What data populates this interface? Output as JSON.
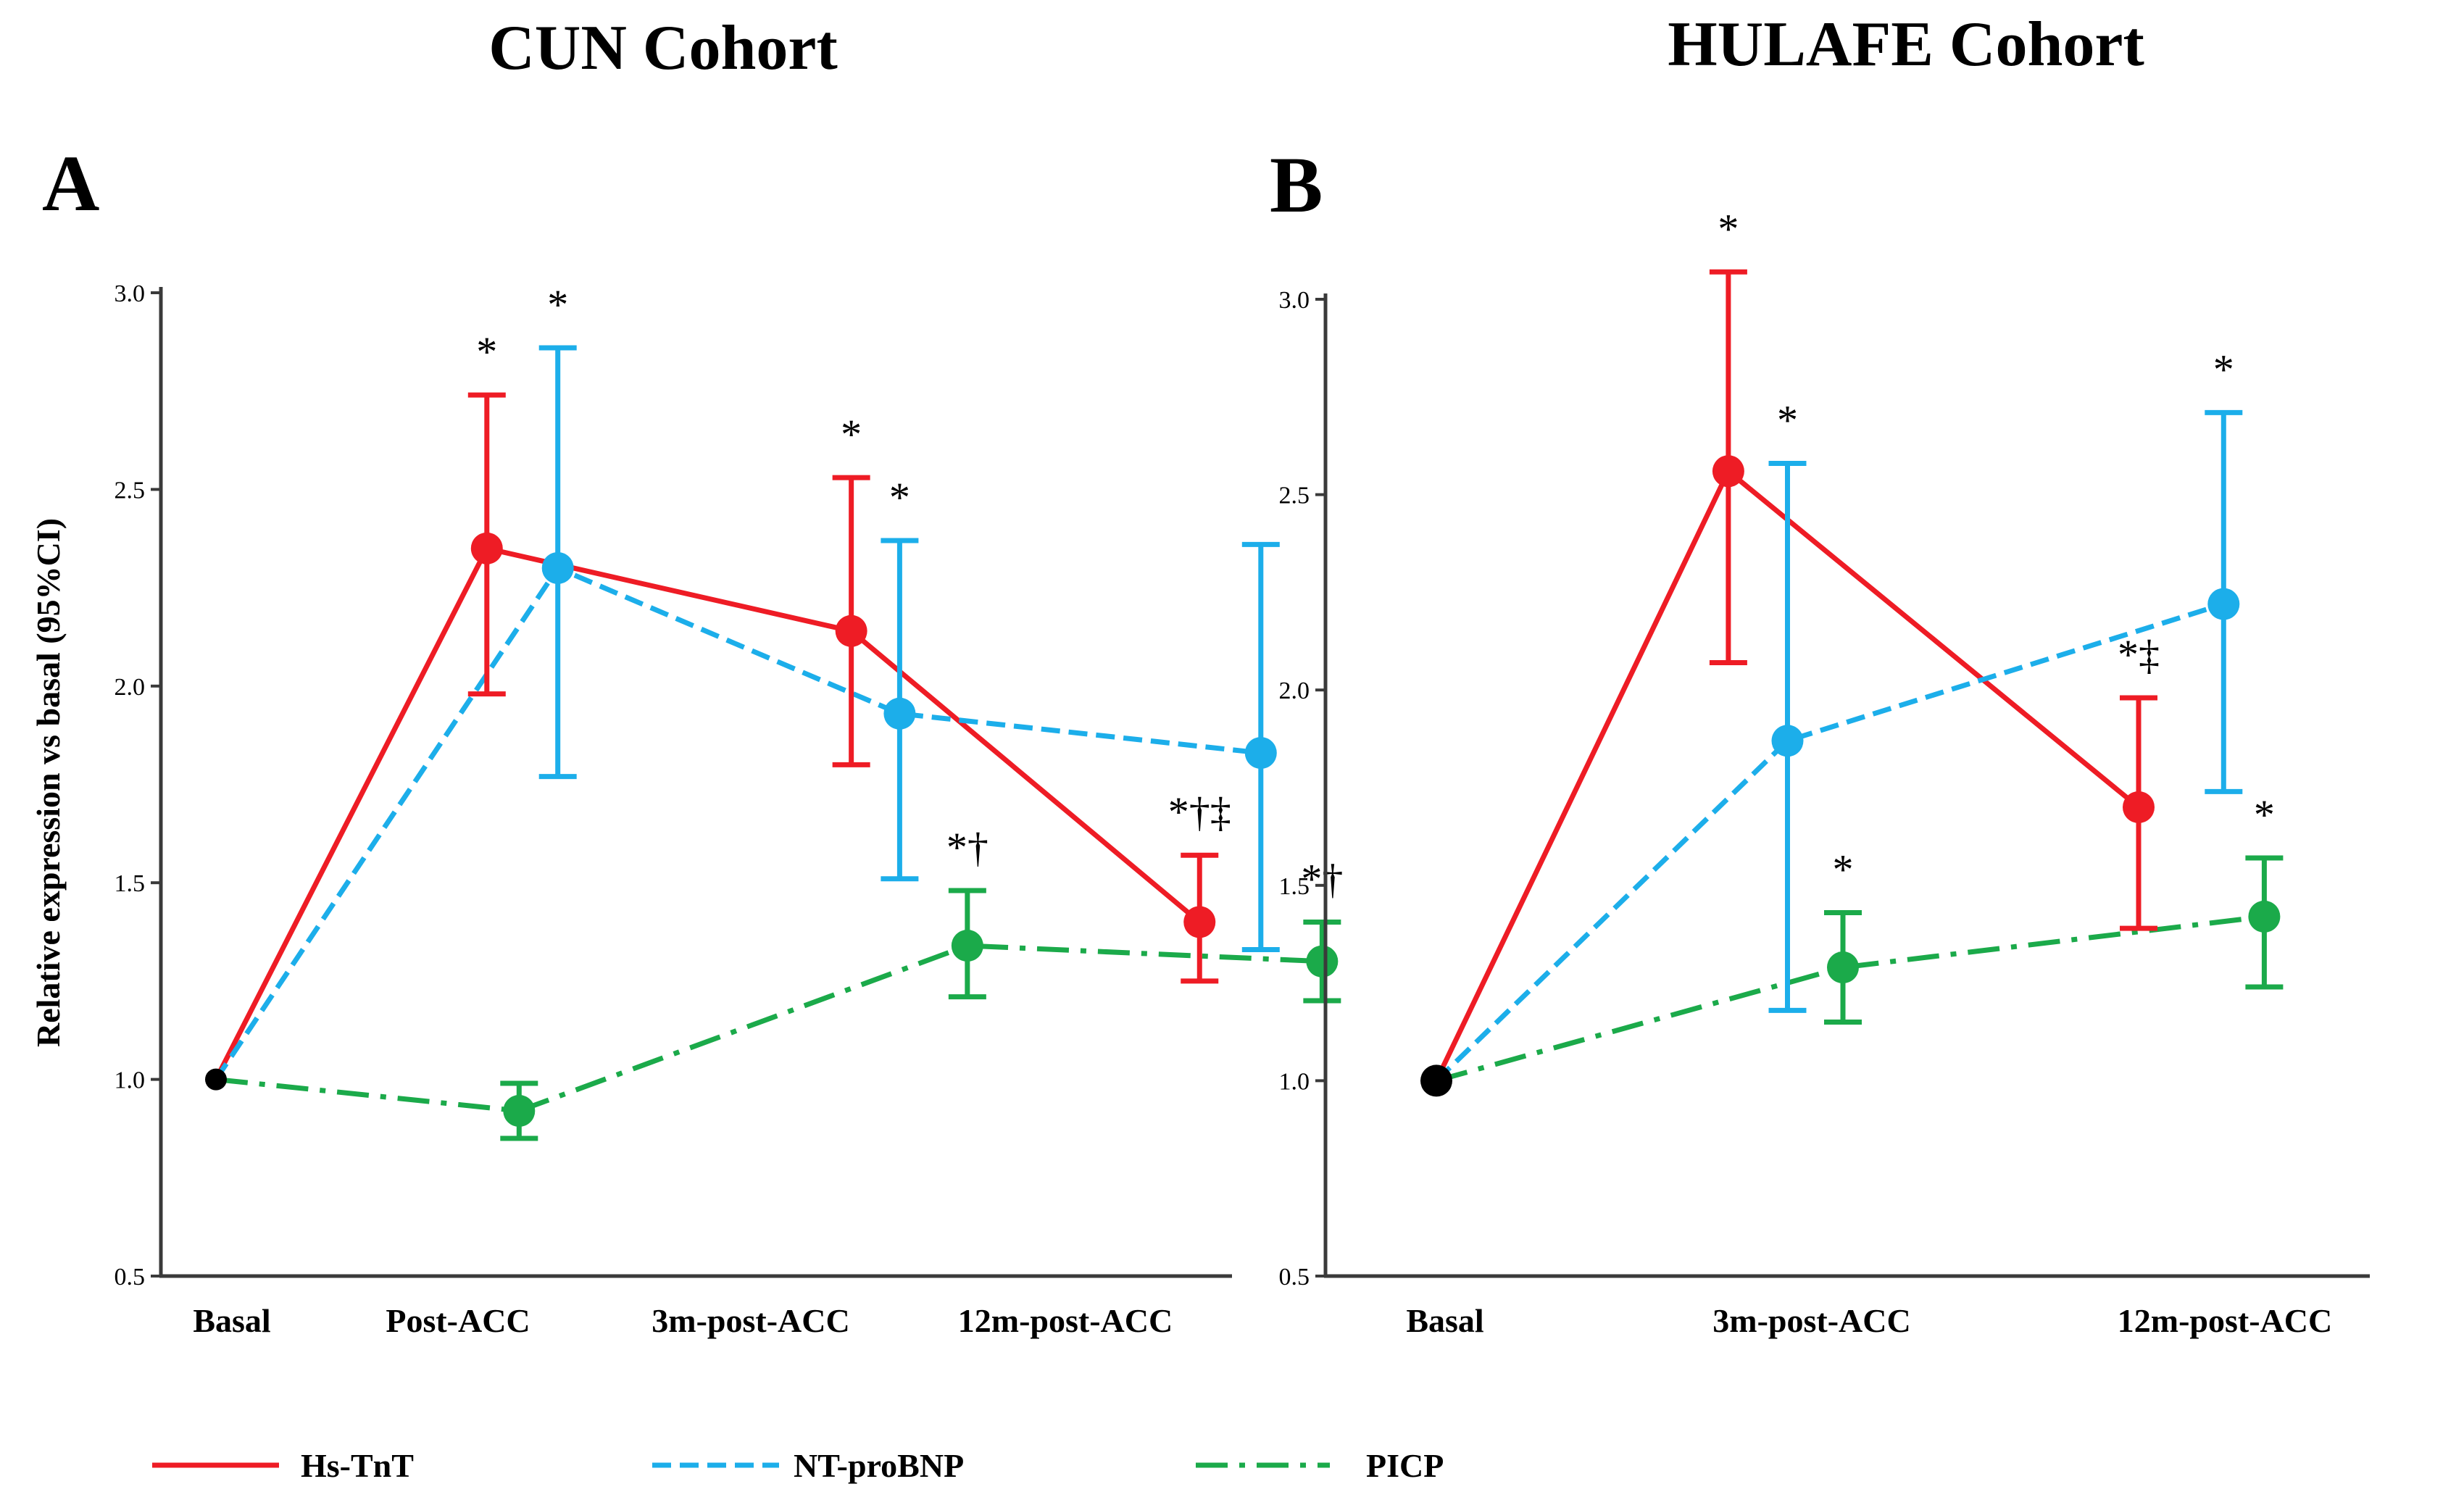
{
  "legend": [
    {
      "name": "Hs-TnT",
      "color": "#EE1C25",
      "dash": "solid"
    },
    {
      "name": "NT-proBNP",
      "color": "#1CAEEA",
      "dash": "dashed"
    },
    {
      "name": "PICP",
      "color": "#1BAA4A",
      "dash": "dashdot"
    }
  ],
  "chart_data": [
    {
      "type": "line",
      "panel": "A",
      "title": "CUN Cohort",
      "ylabel": "Relative expression vs basal (95%CI)",
      "ylim": [
        0.5,
        3.0
      ],
      "yticks": [
        "0.5",
        "1.0",
        "1.5",
        "2.0",
        "2.5",
        "3.0"
      ],
      "categories": [
        "Basal",
        "Post-ACC",
        "3m-post-ACC",
        "12m-post-ACC"
      ],
      "series": [
        {
          "name": "Hs-TnT",
          "color": "#EE1C25",
          "dash": "solid",
          "points": [
            {
              "x": 0.0,
              "y": 1.0,
              "basal": true
            },
            {
              "x": 0.84,
              "y": 2.35,
              "lo": 1.98,
              "hi": 2.74,
              "annot": "*"
            },
            {
              "x": 1.97,
              "y": 2.14,
              "lo": 1.8,
              "hi": 2.53,
              "annot": "*"
            },
            {
              "x": 3.05,
              "y": 1.4,
              "lo": 1.25,
              "hi": 1.57,
              "annot": "*†‡"
            }
          ]
        },
        {
          "name": "NT-proBNP",
          "color": "#1CAEEA",
          "dash": "dashed",
          "points": [
            {
              "x": 0.0,
              "y": 1.0,
              "basal": true
            },
            {
              "x": 1.06,
              "y": 2.3,
              "lo": 1.77,
              "hi": 2.86,
              "annot": "*"
            },
            {
              "x": 2.12,
              "y": 1.93,
              "lo": 1.51,
              "hi": 2.37,
              "annot": "*"
            },
            {
              "x": 3.24,
              "y": 1.83,
              "lo": 1.33,
              "hi": 2.36,
              "annot": ""
            }
          ]
        },
        {
          "name": "PICP",
          "color": "#1BAA4A",
          "dash": "dashdot",
          "points": [
            {
              "x": 0.0,
              "y": 1.0,
              "basal": true
            },
            {
              "x": 0.94,
              "y": 0.92,
              "lo": 0.85,
              "hi": 0.99,
              "annot": ""
            },
            {
              "x": 2.33,
              "y": 1.34,
              "lo": 1.21,
              "hi": 1.48,
              "annot": "*†"
            },
            {
              "x": 3.43,
              "y": 1.3,
              "lo": 1.2,
              "hi": 1.4,
              "annot": "*†"
            }
          ]
        }
      ]
    },
    {
      "type": "line",
      "panel": "B",
      "title": "HULAFE Cohort",
      "ylabel": "",
      "ylim": [
        0.5,
        3.0
      ],
      "yticks": [
        "0.5",
        "1.0",
        "1.5",
        "2.0",
        "2.5",
        "3.0"
      ],
      "categories": [
        "Basal",
        "3m-post-ACC",
        "12m-post-ACC"
      ],
      "series": [
        {
          "name": "Hs-TnT",
          "color": "#EE1C25",
          "dash": "solid",
          "points": [
            {
              "x": 0.0,
              "y": 1.0,
              "basal": true
            },
            {
              "x": 0.79,
              "y": 2.56,
              "lo": 2.07,
              "hi": 3.07,
              "annot": "*"
            },
            {
              "x": 1.9,
              "y": 1.7,
              "lo": 1.39,
              "hi": 1.98,
              "annot": "*‡"
            }
          ]
        },
        {
          "name": "NT-proBNP",
          "color": "#1CAEEA",
          "dash": "dashed",
          "points": [
            {
              "x": 0.0,
              "y": 1.0,
              "basal": true
            },
            {
              "x": 0.95,
              "y": 1.87,
              "lo": 1.18,
              "hi": 2.58,
              "annot": "*"
            },
            {
              "x": 2.13,
              "y": 2.22,
              "lo": 1.74,
              "hi": 2.71,
              "annot": "*"
            }
          ]
        },
        {
          "name": "PICP",
          "color": "#1BAA4A",
          "dash": "dashdot",
          "points": [
            {
              "x": 0.0,
              "y": 1.0,
              "basal": true
            },
            {
              "x": 1.1,
              "y": 1.29,
              "lo": 1.15,
              "hi": 1.43,
              "annot": "*"
            },
            {
              "x": 2.24,
              "y": 1.42,
              "lo": 1.24,
              "hi": 1.57,
              "annot": "*"
            }
          ]
        }
      ]
    }
  ]
}
